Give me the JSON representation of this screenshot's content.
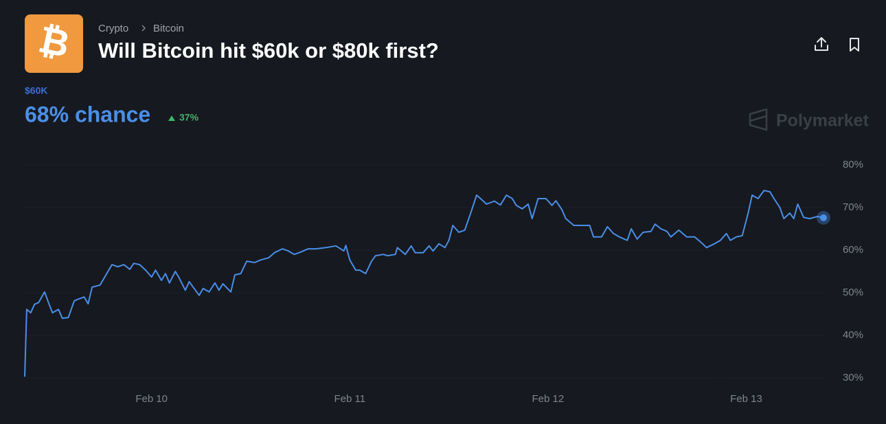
{
  "header": {
    "breadcrumb": [
      "Crypto",
      "Bitcoin"
    ],
    "title": "Will Bitcoin hit $60k or $80k first?",
    "outcome": "$60K",
    "chance": "68% chance",
    "change": "37%",
    "brand": "Polymarket"
  },
  "chart_data": {
    "type": "line",
    "color": "#4a8fe8",
    "x": [
      9.36,
      9.37,
      9.39,
      9.41,
      9.43,
      9.46,
      9.48,
      9.5,
      9.53,
      9.55,
      9.58,
      9.61,
      9.63,
      9.66,
      9.68,
      9.7,
      9.74,
      9.77,
      9.8,
      9.83,
      9.86,
      9.89,
      9.91,
      9.94,
      9.97,
      10.0,
      10.02,
      10.05,
      10.07,
      10.09,
      10.12,
      10.14,
      10.17,
      10.19,
      10.21,
      10.24,
      10.26,
      10.29,
      10.32,
      10.34,
      10.36,
      10.4,
      10.42,
      10.45,
      10.48,
      10.52,
      10.55,
      10.59,
      10.62,
      10.66,
      10.69,
      10.72,
      10.75,
      10.79,
      10.83,
      10.88,
      10.93,
      10.97,
      10.98,
      11.0,
      11.03,
      11.05,
      11.08,
      11.11,
      11.13,
      11.17,
      11.19,
      11.23,
      11.24,
      11.28,
      11.31,
      11.33,
      11.37,
      11.4,
      11.42,
      11.45,
      11.48,
      11.5,
      11.52,
      11.55,
      11.58,
      11.61,
      11.64,
      11.66,
      11.69,
      11.73,
      11.76,
      11.79,
      11.82,
      11.84,
      11.87,
      11.9,
      11.92,
      11.95,
      11.99,
      12.02,
      12.04,
      12.07,
      12.09,
      12.13,
      12.17,
      12.21,
      12.23,
      12.27,
      12.3,
      12.33,
      12.36,
      12.4,
      12.42,
      12.45,
      12.48,
      12.52,
      12.54,
      12.57,
      12.6,
      12.62,
      12.66,
      12.7,
      12.74,
      12.78,
      12.8,
      12.84,
      12.87,
      12.9,
      12.92,
      12.95,
      12.98,
      13.01,
      13.03,
      13.06,
      13.09,
      13.12,
      13.14,
      13.17,
      13.19,
      13.22,
      13.24,
      13.26,
      13.29,
      13.32,
      13.36,
      13.39
    ],
    "values": [
      30.3,
      46.1,
      45.3,
      47.3,
      47.7,
      50.2,
      47.7,
      45.3,
      46.1,
      44.0,
      44.2,
      48.1,
      48.5,
      49.0,
      47.4,
      51.3,
      51.8,
      54.2,
      56.6,
      56.1,
      56.6,
      55.5,
      56.9,
      56.6,
      55.3,
      53.7,
      55.3,
      52.9,
      54.5,
      52.3,
      55.0,
      53.4,
      50.6,
      52.6,
      51.3,
      49.4,
      51.0,
      50.2,
      52.3,
      50.6,
      52.1,
      50.2,
      54.2,
      54.5,
      57.4,
      57.1,
      57.7,
      58.2,
      59.4,
      60.3,
      59.8,
      59.0,
      59.5,
      60.3,
      60.3,
      60.6,
      61.0,
      59.8,
      61.1,
      57.7,
      55.3,
      55.3,
      54.5,
      57.4,
      58.7,
      59.0,
      58.7,
      59.0,
      60.6,
      59.0,
      61.0,
      59.4,
      59.4,
      61.0,
      59.8,
      61.5,
      60.6,
      62.3,
      65.8,
      64.2,
      64.7,
      68.7,
      72.9,
      72.1,
      70.8,
      71.5,
      70.6,
      72.9,
      72.1,
      70.5,
      69.7,
      70.8,
      67.4,
      72.1,
      72.1,
      70.5,
      71.6,
      69.5,
      67.4,
      65.8,
      65.8,
      65.8,
      63.1,
      63.1,
      65.5,
      63.9,
      63.1,
      62.3,
      65.0,
      62.6,
      64.2,
      64.4,
      66.1,
      65.0,
      64.4,
      63.1,
      64.7,
      63.1,
      63.1,
      61.5,
      60.6,
      61.5,
      62.3,
      63.9,
      62.3,
      63.1,
      63.4,
      68.7,
      72.9,
      72.1,
      74.0,
      73.7,
      72.1,
      70.0,
      67.4,
      68.7,
      67.4,
      70.8,
      67.7,
      67.4,
      67.9,
      67.6
    ],
    "xlim": [
      9.36,
      13.39
    ],
    "xticks": [
      {
        "value": 10,
        "label": "Feb 10"
      },
      {
        "value": 11,
        "label": "Feb 11"
      },
      {
        "value": 12,
        "label": "Feb 12"
      },
      {
        "value": 13,
        "label": "Feb 13"
      }
    ],
    "ylim": [
      30,
      80
    ],
    "yticks": [
      {
        "value": 30,
        "label": "30%"
      },
      {
        "value": 40,
        "label": "40%"
      },
      {
        "value": 50,
        "label": "50%"
      },
      {
        "value": 60,
        "label": "60%"
      },
      {
        "value": 70,
        "label": "70%"
      },
      {
        "value": 80,
        "label": "80%"
      }
    ],
    "grid": true
  }
}
